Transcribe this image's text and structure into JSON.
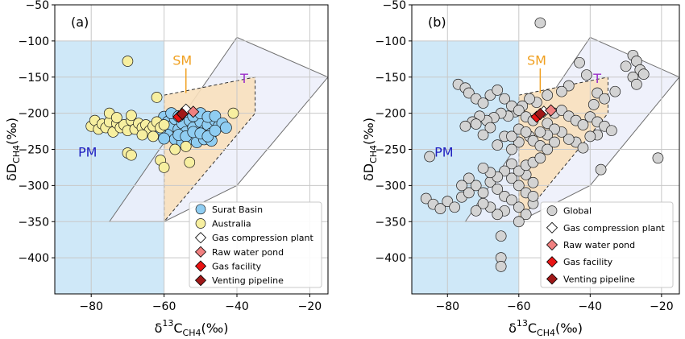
{
  "figure": {
    "xlabel": {
      "main": "δ",
      "sup": "13",
      "c": "C",
      "sub": "CH4",
      "unit": "(‰)"
    },
    "ylabel": {
      "main": "δD",
      "sub": "CH4",
      "unit": "(‰)"
    }
  },
  "colors": {
    "pm_fill": "#cfe8f8",
    "sm_fill": "#f8e0bd",
    "t_fill": "#eceefa",
    "pm_text": "#1f1fc0",
    "sm_text": "#f0a020",
    "t_text": "#9b30c8",
    "grid": "#c8c8c8",
    "surat": "#8fcdf2",
    "australia": "#f7efa0",
    "global": "#d3d3d3",
    "gas_compression": "#ffffff",
    "raw_water": "#f08080",
    "gas_facility": "#e81414",
    "venting": "#a01818"
  },
  "chart_data": [
    {
      "type": "scatter",
      "panel_label": "(a)",
      "xlabel": "δ13CCH4(‰)",
      "ylabel": "δDCH4(‰)",
      "xlim": [
        -90,
        -15
      ],
      "ylim": [
        -450,
        -50
      ],
      "xticks": [
        -80,
        -60,
        -40,
        -20
      ],
      "yticks": [
        -50,
        -100,
        -150,
        -200,
        -250,
        -300,
        -350,
        -400
      ],
      "grid": true,
      "legend_position": "bottom-right",
      "region_labels": [
        {
          "text": "PM",
          "x": -81,
          "y": -260
        },
        {
          "text": "SM",
          "x": -55,
          "y": -133
        },
        {
          "text": "T",
          "x": -38,
          "y": -158
        }
      ],
      "series": [
        {
          "name": "Surat Basin",
          "marker": "circle",
          "points": [
            [
              -60,
              -205
            ],
            [
              -59,
              -212
            ],
            [
              -58,
              -218
            ],
            [
              -57,
              -208
            ],
            [
              -56,
              -222
            ],
            [
              -55,
              -214
            ],
            [
              -54,
              -226
            ],
            [
              -53,
              -210
            ],
            [
              -52,
              -220
            ],
            [
              -51,
              -230
            ],
            [
              -50,
              -212
            ],
            [
              -49,
              -224
            ],
            [
              -48,
              -216
            ],
            [
              -47,
              -228
            ],
            [
              -46,
              -210
            ],
            [
              -45,
              -218
            ],
            [
              -59,
              -230
            ],
            [
              -57,
              -236
            ],
            [
              -55,
              -240
            ],
            [
              -53,
              -236
            ],
            [
              -51,
              -240
            ],
            [
              -49,
              -236
            ],
            [
              -47,
              -238
            ],
            [
              -58,
              -200
            ],
            [
              -56,
              -204
            ],
            [
              -54,
              -198
            ],
            [
              -52,
              -204
            ],
            [
              -50,
              -200
            ],
            [
              -48,
              -205
            ],
            [
              -46,
              -204
            ],
            [
              -44,
              -214
            ],
            [
              -43,
              -220
            ],
            [
              -61,
              -222
            ],
            [
              -60,
              -235
            ],
            [
              -56,
              -230
            ],
            [
              -54,
              -232
            ],
            [
              -52,
              -226
            ],
            [
              -50,
              -228
            ],
            [
              -48,
              -232
            ],
            [
              -46,
              -224
            ]
          ]
        },
        {
          "name": "Australia",
          "marker": "circle",
          "points": [
            [
              -70,
              -128
            ],
            [
              -62,
              -178
            ],
            [
              -41,
              -200
            ],
            [
              -80,
              -218
            ],
            [
              -79,
              -210
            ],
            [
              -78,
              -222
            ],
            [
              -77,
              -215
            ],
            [
              -76,
              -220
            ],
            [
              -75,
              -212
            ],
            [
              -74,
              -226
            ],
            [
              -73,
              -214
            ],
            [
              -72,
              -220
            ],
            [
              -71,
              -216
            ],
            [
              -70,
              -224
            ],
            [
              -69,
              -210
            ],
            [
              -68,
              -222
            ],
            [
              -67,
              -214
            ],
            [
              -66,
              -220
            ],
            [
              -65,
              -216
            ],
            [
              -64,
              -224
            ],
            [
              -63,
              -218
            ],
            [
              -62,
              -212
            ],
            [
              -61,
              -220
            ],
            [
              -60,
              -216
            ],
            [
              -69,
              -203
            ],
            [
              -70,
              -255
            ],
            [
              -69,
              -258
            ],
            [
              -61,
              -265
            ],
            [
              -60,
              -275
            ],
            [
              -53,
              -268
            ],
            [
              -57,
              -250
            ],
            [
              -54,
              -246
            ],
            [
              -75,
              -200
            ],
            [
              -73,
              -206
            ],
            [
              -66,
              -230
            ],
            [
              -63,
              -232
            ]
          ]
        },
        {
          "name": "Gas compression plant",
          "marker": "diamond",
          "points": [
            [
              -54,
              -195
            ]
          ]
        },
        {
          "name": "Raw water pond",
          "marker": "diamond",
          "points": [
            [
              -52,
              -198
            ]
          ]
        },
        {
          "name": "Gas facility",
          "marker": "diamond",
          "points": [
            [
              -56,
              -205
            ]
          ]
        },
        {
          "name": "Venting pipeline",
          "marker": "diamond",
          "points": [
            [
              -55,
              -201
            ]
          ]
        }
      ]
    },
    {
      "type": "scatter",
      "panel_label": "(b)",
      "xlabel": "δ13CCH4(‰)",
      "ylabel": "δDCH4(‰)",
      "xlim": [
        -90,
        -15
      ],
      "ylim": [
        -450,
        -50
      ],
      "xticks": [
        -80,
        -60,
        -40,
        -20
      ],
      "yticks": [
        -50,
        -100,
        -150,
        -200,
        -250,
        -300,
        -350,
        -400
      ],
      "grid": true,
      "legend_position": "bottom-right",
      "region_labels": [
        {
          "text": "PM",
          "x": -81,
          "y": -260
        },
        {
          "text": "SM",
          "x": -55,
          "y": -133
        },
        {
          "text": "T",
          "x": -38,
          "y": -158
        }
      ],
      "series": [
        {
          "name": "Global",
          "marker": "circle",
          "points": [
            [
              -54,
              -75
            ],
            [
              -85,
              -260
            ],
            [
              -21,
              -262
            ],
            [
              -28,
              -120
            ],
            [
              -27,
              -128
            ],
            [
              -26,
              -140
            ],
            [
              -28,
              -150
            ],
            [
              -25,
              -146
            ],
            [
              -30,
              -135
            ],
            [
              -27,
              -160
            ],
            [
              -33,
              -170
            ],
            [
              -38,
              -172
            ],
            [
              -36,
              -180
            ],
            [
              -39,
              -188
            ],
            [
              -38,
              -230
            ],
            [
              -37,
              -278
            ],
            [
              -43,
              -130
            ],
            [
              -41,
              -147
            ],
            [
              -46,
              -162
            ],
            [
              -48,
              -170
            ],
            [
              -52,
              -175
            ],
            [
              -55,
              -185
            ],
            [
              -57,
              -180
            ],
            [
              -59,
              -190
            ],
            [
              -61,
              -198
            ],
            [
              -63,
              -204
            ],
            [
              -65,
              -200
            ],
            [
              -67,
              -206
            ],
            [
              -69,
              -210
            ],
            [
              -71,
              -204
            ],
            [
              -73,
              -212
            ],
            [
              -75,
              -218
            ],
            [
              -77,
              -160
            ],
            [
              -75,
              -165
            ],
            [
              -74,
              -172
            ],
            [
              -72,
              -180
            ],
            [
              -70,
              -186
            ],
            [
              -68,
              -175
            ],
            [
              -66,
              -168
            ],
            [
              -64,
              -180
            ],
            [
              -62,
              -190
            ],
            [
              -60,
              -196
            ],
            [
              -58,
              -205
            ],
            [
              -56,
              -210
            ],
            [
              -52,
              -214
            ],
            [
              -50,
              -200
            ],
            [
              -48,
              -196
            ],
            [
              -46,
              -204
            ],
            [
              -44,
              -210
            ],
            [
              -42,
              -216
            ],
            [
              -40,
              -205
            ],
            [
              -38,
              -212
            ],
            [
              -36,
              -218
            ],
            [
              -34,
              -224
            ],
            [
              -44,
              -240
            ],
            [
              -42,
              -248
            ],
            [
              -40,
              -232
            ],
            [
              -46,
              -236
            ],
            [
              -48,
              -226
            ],
            [
              -50,
              -222
            ],
            [
              -52,
              -230
            ],
            [
              -54,
              -226
            ],
            [
              -57,
              -232
            ],
            [
              -60,
              -240
            ],
            [
              -62,
              -250
            ],
            [
              -64,
              -232
            ],
            [
              -66,
              -244
            ],
            [
              -68,
              -220
            ],
            [
              -70,
              -230
            ],
            [
              -72,
              -215
            ],
            [
              -86,
              -318
            ],
            [
              -84,
              -326
            ],
            [
              -82,
              -332
            ],
            [
              -80,
              -322
            ],
            [
              -78,
              -330
            ],
            [
              -76,
              -316
            ],
            [
              -74,
              -310
            ],
            [
              -72,
              -300
            ],
            [
              -70,
              -310
            ],
            [
              -68,
              -295
            ],
            [
              -66,
              -305
            ],
            [
              -64,
              -315
            ],
            [
              -62,
              -290
            ],
            [
              -60,
              -300
            ],
            [
              -58,
              -285
            ],
            [
              -56,
              -296
            ],
            [
              -62,
              -320
            ],
            [
              -60,
              -330
            ],
            [
              -58,
              -340
            ],
            [
              -56,
              -325
            ],
            [
              -60,
              -350
            ],
            [
              -58,
              -310
            ],
            [
              -56,
              -315
            ],
            [
              -64,
              -335
            ],
            [
              -66,
              -340
            ],
            [
              -68,
              -330
            ],
            [
              -70,
              -325
            ],
            [
              -72,
              -335
            ],
            [
              -65,
              -370
            ],
            [
              -65,
              -400
            ],
            [
              -65,
              -412
            ],
            [
              -62,
              -270
            ],
            [
              -60,
              -280
            ],
            [
              -58,
              -272
            ],
            [
              -56,
              -268
            ],
            [
              -54,
              -262
            ],
            [
              -64,
              -280
            ],
            [
              -66,
              -288
            ],
            [
              -68,
              -282
            ],
            [
              -70,
              -276
            ],
            [
              -74,
              -290
            ],
            [
              -76,
              -300
            ],
            [
              -62,
              -232
            ],
            [
              -60,
              -222
            ],
            [
              -58,
              -226
            ],
            [
              -56,
              -238
            ],
            [
              -54,
              -245
            ],
            [
              -52,
              -250
            ],
            [
              -50,
              -240
            ]
          ]
        },
        {
          "name": "Gas compression plant",
          "marker": "diamond",
          "points": [
            [
              -53,
              -198
            ]
          ]
        },
        {
          "name": "Raw water pond",
          "marker": "diamond",
          "points": [
            [
              -51,
              -196
            ]
          ]
        },
        {
          "name": "Gas facility",
          "marker": "diamond",
          "points": [
            [
              -55,
              -205
            ]
          ]
        },
        {
          "name": "Venting pipeline",
          "marker": "diamond",
          "points": [
            [
              -54,
              -201
            ]
          ]
        }
      ]
    }
  ]
}
